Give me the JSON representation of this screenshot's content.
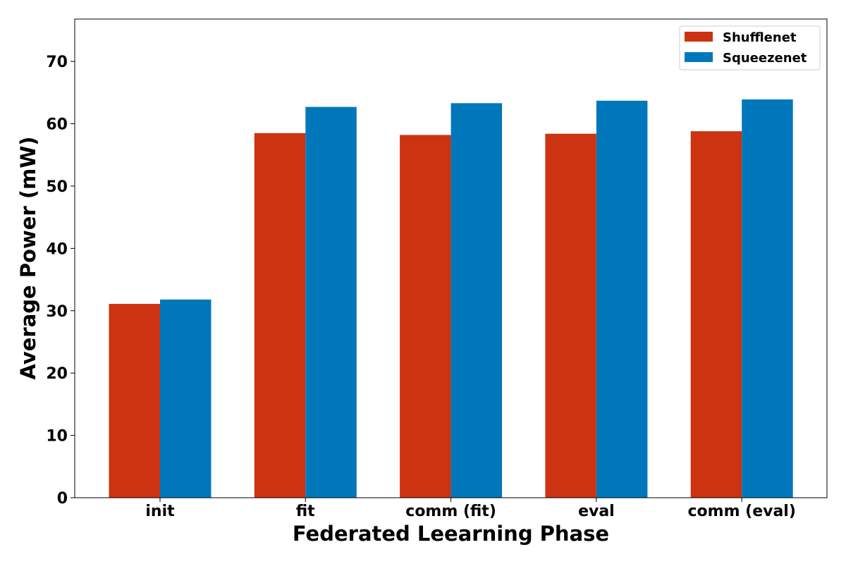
{
  "chart_data": {
    "type": "bar",
    "categories": [
      "init",
      "fit",
      "comm (fit)",
      "eval",
      "comm (eval)"
    ],
    "series": [
      {
        "name": "Shufflenet",
        "color": "#cc3311",
        "values": [
          31.1,
          58.5,
          58.2,
          58.4,
          58.8
        ]
      },
      {
        "name": "Squeezenet",
        "color": "#0077bb",
        "values": [
          31.8,
          62.7,
          63.3,
          63.7,
          63.9
        ]
      }
    ],
    "title": "",
    "xlabel": "Federated Leearning Phase",
    "ylabel": "Average Power (mW)",
    "ylim": [
      0,
      76.8
    ],
    "yticks": [
      0,
      10,
      20,
      30,
      40,
      50,
      60,
      70
    ],
    "grid": false,
    "legend_position": "top-right"
  }
}
